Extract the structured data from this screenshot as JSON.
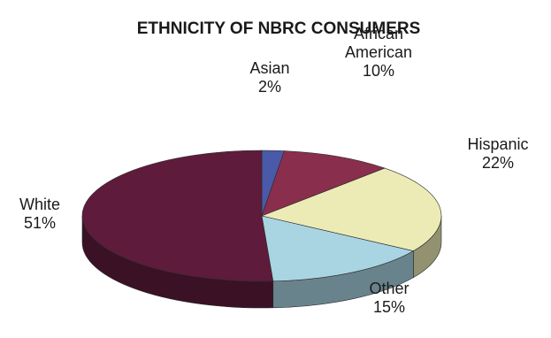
{
  "chart_data": {
    "type": "pie",
    "title": "ETHNICITY OF NBRC CONSUMERS",
    "three_d": true,
    "legend": "none",
    "slices": [
      {
        "label": [
          "Asian"
        ],
        "value_label": "2%",
        "value": 2,
        "color": "#4a5aa8"
      },
      {
        "label": [
          "African",
          "American"
        ],
        "value_label": "10%",
        "value": 10,
        "color": "#8a2e4e"
      },
      {
        "label": [
          "Hispanic"
        ],
        "value_label": "22%",
        "value": 22,
        "color": "#ecebb6"
      },
      {
        "label": [
          "Other"
        ],
        "value_label": "15%",
        "value": 15,
        "color": "#a9d4e2"
      },
      {
        "label": [
          "White"
        ],
        "value_label": "51%",
        "value": 51,
        "color": "#5e1b3b"
      }
    ]
  }
}
